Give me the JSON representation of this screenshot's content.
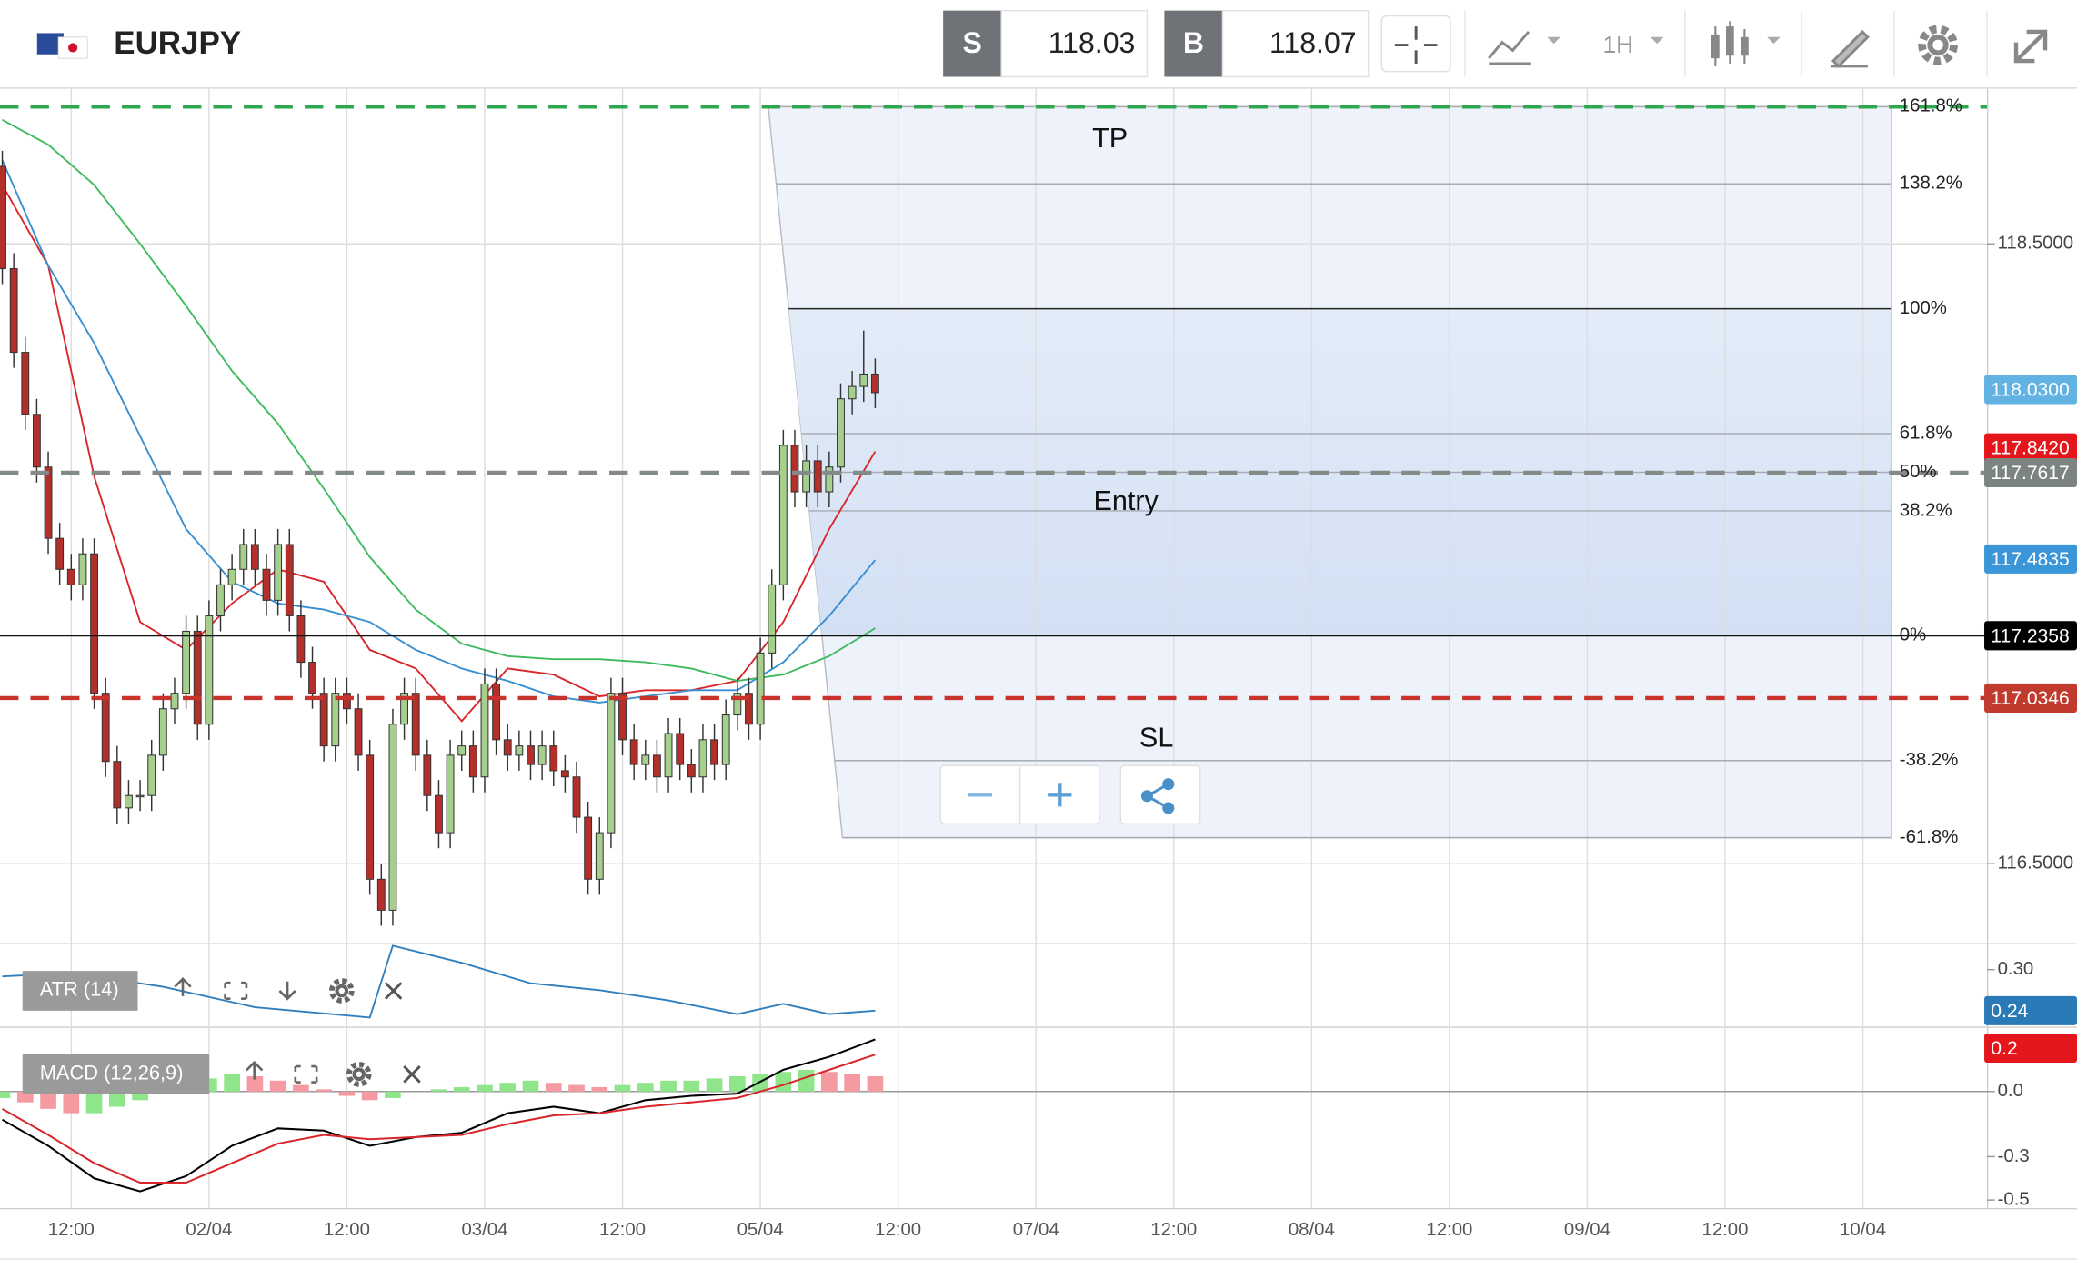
{
  "header": {
    "symbol": "EURJPY",
    "sell_label": "S",
    "sell": "118.03",
    "buy_label": "B",
    "buy": "118.07",
    "interval": "1H"
  },
  "chart_data": [
    {
      "type": "candlestick",
      "x": [
        6,
        7,
        8,
        9,
        10,
        11,
        12,
        13,
        14,
        15,
        16,
        17,
        18,
        19,
        20,
        21,
        22,
        23,
        24,
        25,
        26,
        27,
        28,
        29,
        30,
        31,
        32,
        33,
        34,
        35,
        36,
        37,
        38,
        39,
        40,
        41,
        42,
        43,
        44,
        45,
        46,
        47,
        48,
        49,
        50,
        51,
        52,
        53,
        54,
        55,
        56,
        57,
        58,
        59,
        60,
        61,
        62,
        63,
        64,
        65,
        66,
        67,
        68,
        69,
        70,
        71,
        72,
        73,
        74,
        75,
        76,
        77,
        78,
        79,
        80,
        81,
        82
      ],
      "open": [
        118.75,
        118.42,
        118.15,
        117.95,
        117.78,
        117.55,
        117.45,
        117.4,
        117.5,
        117.05,
        116.83,
        116.68,
        116.72,
        116.72,
        116.85,
        117.0,
        117.05,
        117.25,
        116.95,
        117.3,
        117.4,
        117.45,
        117.53,
        117.45,
        117.35,
        117.53,
        117.3,
        117.15,
        117.05,
        116.88,
        117.05,
        117.0,
        116.85,
        116.45,
        116.35,
        116.95,
        117.05,
        116.85,
        116.72,
        116.6,
        116.85,
        116.88,
        116.78,
        117.08,
        116.9,
        116.85,
        116.88,
        116.82,
        116.88,
        116.8,
        116.78,
        116.65,
        116.45,
        116.6,
        117.05,
        116.9,
        116.82,
        116.85,
        116.78,
        116.92,
        116.82,
        116.78,
        116.9,
        116.82,
        116.98,
        117.05,
        116.95,
        117.18,
        117.4,
        117.85,
        117.7,
        117.8,
        117.7,
        117.78,
        118.0,
        118.04,
        118.08
      ],
      "high": [
        118.8,
        118.47,
        118.2,
        118.0,
        117.83,
        117.6,
        117.5,
        117.55,
        117.55,
        117.1,
        116.88,
        116.77,
        116.77,
        116.9,
        117.05,
        117.1,
        117.3,
        117.3,
        117.35,
        117.45,
        117.5,
        117.58,
        117.58,
        117.5,
        117.58,
        117.58,
        117.35,
        117.2,
        117.1,
        117.1,
        117.1,
        117.05,
        116.9,
        116.5,
        117.0,
        117.1,
        117.1,
        116.9,
        116.77,
        116.9,
        116.93,
        116.93,
        117.13,
        117.13,
        116.95,
        116.93,
        116.93,
        116.93,
        116.93,
        116.85,
        116.83,
        116.7,
        116.65,
        117.1,
        117.1,
        116.95,
        116.9,
        116.9,
        116.97,
        116.97,
        116.87,
        116.95,
        116.95,
        117.03,
        117.1,
        117.1,
        117.23,
        117.45,
        117.9,
        117.9,
        117.85,
        117.85,
        117.83,
        118.05,
        118.09,
        118.22,
        118.13
      ],
      "low": [
        118.37,
        118.1,
        117.9,
        117.73,
        117.5,
        117.4,
        117.35,
        117.35,
        117.0,
        116.78,
        116.63,
        116.63,
        116.67,
        116.67,
        116.8,
        116.95,
        117.0,
        116.9,
        116.9,
        117.25,
        117.35,
        117.4,
        117.4,
        117.3,
        117.3,
        117.25,
        117.1,
        117.0,
        116.83,
        116.83,
        116.95,
        116.8,
        116.4,
        116.3,
        116.3,
        116.9,
        116.8,
        116.67,
        116.55,
        116.55,
        116.8,
        116.73,
        116.73,
        116.85,
        116.8,
        116.8,
        116.77,
        116.77,
        116.75,
        116.73,
        116.6,
        116.4,
        116.4,
        116.55,
        116.85,
        116.77,
        116.77,
        116.73,
        116.73,
        116.77,
        116.73,
        116.73,
        116.77,
        116.77,
        116.93,
        116.9,
        116.9,
        117.13,
        117.35,
        117.65,
        117.65,
        117.65,
        117.65,
        117.73,
        117.95,
        117.99,
        117.97
      ],
      "close": [
        118.42,
        118.15,
        117.95,
        117.78,
        117.55,
        117.45,
        117.4,
        117.5,
        117.05,
        116.83,
        116.68,
        116.72,
        116.72,
        116.85,
        117.0,
        117.05,
        117.25,
        116.95,
        117.3,
        117.4,
        117.45,
        117.53,
        117.45,
        117.35,
        117.53,
        117.3,
        117.15,
        117.05,
        116.88,
        117.05,
        117.0,
        116.85,
        116.45,
        116.35,
        116.95,
        117.05,
        116.85,
        116.72,
        116.6,
        116.85,
        116.88,
        116.78,
        117.08,
        116.9,
        116.85,
        116.88,
        116.82,
        116.88,
        116.8,
        116.78,
        116.65,
        116.45,
        116.6,
        117.05,
        116.9,
        116.82,
        116.85,
        116.78,
        116.92,
        116.82,
        116.78,
        116.9,
        116.82,
        116.98,
        117.05,
        116.95,
        117.18,
        117.4,
        117.85,
        117.7,
        117.8,
        117.7,
        117.78,
        118.0,
        118.04,
        118.08,
        118.02
      ],
      "up_color": "#a6cf8e",
      "down_color": "#b3302a",
      "series": [
        {
          "color": "#d8262b",
          "x": [
            6,
            10,
            14,
            18,
            22,
            26,
            30,
            34,
            38,
            42,
            46,
            50,
            54,
            58,
            62,
            66,
            70,
            74,
            78,
            82
          ],
          "values": [
            118.69,
            118.43,
            117.75,
            117.28,
            117.19,
            117.34,
            117.45,
            117.41,
            117.19,
            117.13,
            116.96,
            117.13,
            117.11,
            117.04,
            117.06,
            117.06,
            117.09,
            117.28,
            117.58,
            117.83
          ]
        },
        {
          "color": "#3a8fd0",
          "x": [
            6,
            10,
            14,
            18,
            22,
            26,
            30,
            34,
            38,
            42,
            46,
            50,
            54,
            58,
            62,
            66,
            70,
            74,
            78,
            82
          ],
          "values": [
            118.77,
            118.43,
            118.18,
            117.88,
            117.58,
            117.41,
            117.34,
            117.32,
            117.28,
            117.19,
            117.13,
            117.09,
            117.04,
            117.02,
            117.04,
            117.06,
            117.06,
            117.15,
            117.3,
            117.48
          ]
        },
        {
          "color": "#3dbb5e",
          "x": [
            6,
            10,
            14,
            18,
            22,
            26,
            30,
            34,
            38,
            42,
            46,
            50,
            54,
            58,
            62,
            66,
            70,
            74,
            78,
            82
          ],
          "values": [
            118.9,
            118.82,
            118.69,
            118.5,
            118.3,
            118.09,
            117.92,
            117.71,
            117.49,
            117.32,
            117.21,
            117.17,
            117.16,
            117.16,
            117.15,
            117.13,
            117.09,
            117.11,
            117.17,
            117.26
          ]
        }
      ],
      "xlim": [
        5.8,
        178.8
      ],
      "xticks": [
        {
          "value": 12,
          "label": "12:00"
        },
        {
          "value": 24,
          "label": "02/04"
        },
        {
          "value": 36,
          "label": "12:00"
        },
        {
          "value": 48,
          "label": "03/04"
        },
        {
          "value": 60,
          "label": "12:00"
        },
        {
          "value": 72,
          "label": "05/04"
        },
        {
          "value": 84,
          "label": "12:00"
        },
        {
          "value": 96,
          "label": "07/04"
        },
        {
          "value": 108,
          "label": "12:00"
        },
        {
          "value": 120,
          "label": "08/04"
        },
        {
          "value": 132,
          "label": "12:00"
        },
        {
          "value": 144,
          "label": "09/04"
        },
        {
          "value": 156,
          "label": "12:00"
        },
        {
          "value": 168,
          "label": "10/04"
        }
      ],
      "ylim": [
        116.244,
        118.996
      ],
      "yticks": [
        {
          "value": 118.5,
          "label": "118.5000"
        },
        {
          "value": 116.5,
          "label": "116.5000"
        }
      ],
      "grid": true,
      "fib": {
        "p0": 117.2358,
        "p100": 118.2906,
        "levels": [
          {
            "value": 161.8,
            "label": "161.8%"
          },
          {
            "value": 138.2,
            "label": "138.2%"
          },
          {
            "value": 100,
            "label": "100%"
          },
          {
            "value": 61.8,
            "label": "61.8%"
          },
          {
            "value": 50,
            "label": "50%"
          },
          {
            "value": 38.2,
            "label": "38.2%"
          },
          {
            "value": 0,
            "label": "0%"
          },
          {
            "value": -38.2,
            "label": "-38.2%"
          },
          {
            "value": -61.8,
            "label": "-61.8%"
          }
        ]
      },
      "zones": {
        "tp": "TP",
        "entry": "Entry",
        "sl": "SL"
      },
      "lines": [
        {
          "value": 118.9425,
          "color": "#2ea84f",
          "dash": true
        },
        {
          "value": 117.7617,
          "color": "#838a88",
          "dash": true
        },
        {
          "value": 117.2358,
          "color": "#111111",
          "dash": false
        },
        {
          "value": 117.0346,
          "color": "#c8332b",
          "dash": true
        }
      ],
      "price_tags": [
        {
          "value": 118.03,
          "label": "118.0300",
          "color": "#62b2e4"
        },
        {
          "value": 117.842,
          "label": "117.8420",
          "color": "#e5161b"
        },
        {
          "value": 117.7617,
          "label": "117.7617",
          "color": "#7c8482"
        },
        {
          "value": 117.4835,
          "label": "117.4835",
          "color": "#3a96d8"
        },
        {
          "value": 117.2358,
          "label": "117.2358",
          "color": "#000000"
        },
        {
          "value": 117.0346,
          "label": "117.0346",
          "color": "#c13a2e"
        }
      ]
    },
    {
      "type": "line",
      "title": "ATR (14)",
      "color": "#2f7fbf",
      "x": [
        6,
        12,
        20,
        28,
        38,
        40,
        46,
        52,
        58,
        64,
        70,
        74,
        78,
        82
      ],
      "values": [
        0.29,
        0.295,
        0.275,
        0.245,
        0.23,
        0.335,
        0.31,
        0.28,
        0.27,
        0.255,
        0.235,
        0.25,
        0.235,
        0.24
      ],
      "ylim": [
        0.2168,
        0.3368
      ],
      "yticks": [
        {
          "value": 0.3,
          "label": "0.30"
        }
      ],
      "price_tags": [
        {
          "value": 0.24,
          "label": "0.24",
          "color": "#2a7ab8"
        }
      ]
    },
    {
      "type": "macd",
      "title": "MACD (12,26,9)",
      "hist_x": [
        6,
        8,
        10,
        12,
        14,
        16,
        18,
        20,
        22,
        24,
        26,
        28,
        30,
        32,
        34,
        36,
        38,
        40,
        42,
        44,
        46,
        48,
        50,
        52,
        54,
        56,
        58,
        60,
        62,
        64,
        66,
        68,
        70,
        72,
        74,
        76,
        78,
        80,
        82
      ],
      "histogram": [
        -0.03,
        -0.05,
        -0.08,
        -0.1,
        -0.1,
        -0.07,
        -0.04,
        0.02,
        0.04,
        0.06,
        0.08,
        0.07,
        0.05,
        0.03,
        0.01,
        -0.02,
        -0.04,
        -0.03,
        0.0,
        0.01,
        0.02,
        0.03,
        0.04,
        0.05,
        0.04,
        0.03,
        0.02,
        0.03,
        0.04,
        0.05,
        0.05,
        0.06,
        0.07,
        0.08,
        0.09,
        0.1,
        0.09,
        0.08,
        0.07
      ],
      "hist_colors": [
        "#8fe58a",
        "#f49aa0"
      ],
      "series": [
        {
          "color": "#000000",
          "x": [
            6,
            10,
            14,
            18,
            22,
            26,
            30,
            34,
            38,
            42,
            46,
            50,
            54,
            58,
            62,
            66,
            70,
            74,
            78,
            82
          ],
          "values": [
            -0.13,
            -0.25,
            -0.4,
            -0.46,
            -0.39,
            -0.25,
            -0.17,
            -0.18,
            -0.25,
            -0.21,
            -0.19,
            -0.1,
            -0.07,
            -0.1,
            -0.04,
            -0.02,
            -0.01,
            0.1,
            0.16,
            0.24
          ]
        },
        {
          "color": "#d8262b",
          "x": [
            6,
            10,
            14,
            18,
            22,
            26,
            30,
            34,
            38,
            42,
            46,
            50,
            54,
            58,
            62,
            66,
            70,
            74,
            78,
            82
          ],
          "values": [
            -0.08,
            -0.2,
            -0.33,
            -0.42,
            -0.42,
            -0.33,
            -0.24,
            -0.2,
            -0.22,
            -0.21,
            -0.2,
            -0.15,
            -0.11,
            -0.1,
            -0.07,
            -0.05,
            -0.03,
            0.03,
            0.1,
            0.17
          ]
        }
      ],
      "ylim": [
        -0.537,
        0.293
      ],
      "yticks": [
        {
          "value": 0,
          "label": "0.0"
        },
        {
          "value": -0.3,
          "label": "-0.3"
        },
        {
          "value": -0.5,
          "label": "-0.5"
        }
      ],
      "price_tags": [
        {
          "value": 0.2,
          "label": "0.2",
          "color": "#e5161b"
        }
      ]
    }
  ]
}
